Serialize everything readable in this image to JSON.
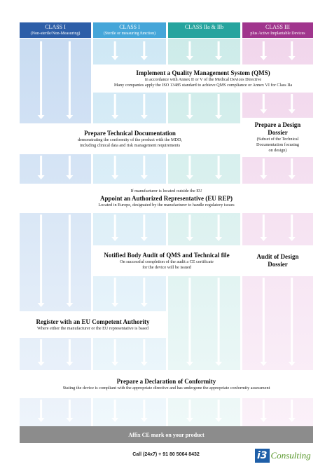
{
  "headers": [
    {
      "class": "CLASS I",
      "sub": "(Non-sterile/Non-Measuring)"
    },
    {
      "class": "CLASS I",
      "sub": "(Sterile or measuring function)"
    },
    {
      "class": "CLASS IIa & IIb",
      "sub": ""
    },
    {
      "class": "CLASS  III",
      "sub": "plus Active Implantable Devices"
    }
  ],
  "steps": [
    {
      "title": "Implement a Quality Management System (QMS)",
      "lines": [
        "in accordance with Annex II or V of the Medical Devices Directive",
        "Many companies apply the ISO 13485 standard to achieve QMS compliance or Annex VI for Class IIa"
      ]
    },
    {
      "title": "Prepare Technical Documentation",
      "lines": [
        "demonstrating the conformity of the product with the MDD,",
        "including clinical data and risk management requirements"
      ]
    },
    {
      "title": "Prepare a Design Dossier",
      "lines": [
        "(Subset of the Technical",
        "Documentation focusing",
        "on design)"
      ]
    },
    {
      "note": "If manufacturer is located outside the EU",
      "title": "Appoint an Authorized Representative (EU REP)",
      "lines": [
        "Located in Europe, designated by the manufacturer to handle regulatory issues"
      ]
    },
    {
      "title": "Notified Body Audit of QMS and Technical file",
      "lines": [
        "On successful completion of the audit a CE certificate",
        "for the device will be issued"
      ]
    },
    {
      "title": "Audit of Design Dossier",
      "lines": []
    },
    {
      "title": "Register with an EU Competent Authority",
      "lines": [
        "Where either the manufacturer or the EU representative is based"
      ]
    },
    {
      "title": "Prepare a Declaration of Conformity",
      "lines": [
        "Stating the device is compliant with the appropriate directive and has undergone the appropriate conformity assessment"
      ]
    }
  ],
  "final_step": "Affix CE mark on your product",
  "footer": {
    "phone": "Call (24x7) + 91 80 5064 8432",
    "logo_mark": "i3",
    "logo_name": "Consulting"
  }
}
